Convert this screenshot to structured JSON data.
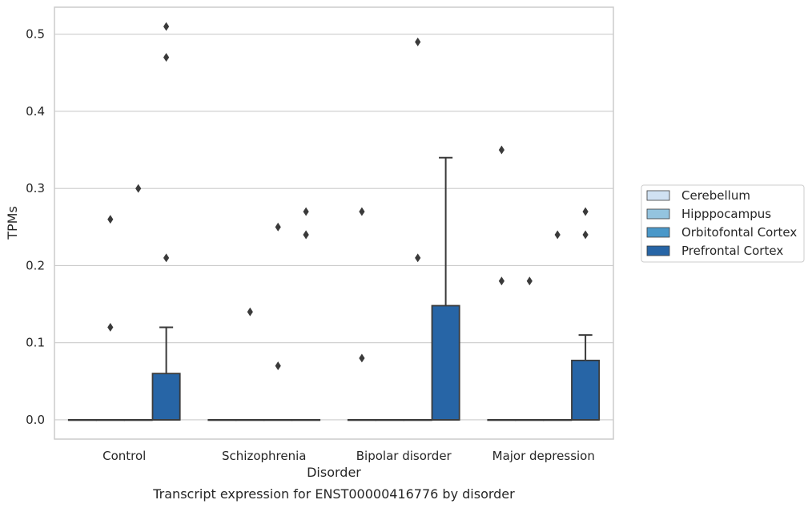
{
  "caption": "Transcript expression for ENST00000416776 by disorder",
  "chart_data": {
    "type": "box",
    "xlabel": "Disorder",
    "ylabel": "TPMs",
    "categories": [
      "Control",
      "Schizophrenia",
      "Bipolar disorder",
      "Major depression"
    ],
    "ylim": [
      -0.025,
      0.535
    ],
    "yticks": [
      0.0,
      0.1,
      0.2,
      0.3,
      0.4,
      0.5
    ],
    "ytick_labels": [
      "0.0",
      "0.1",
      "0.2",
      "0.3",
      "0.4",
      "0.5"
    ],
    "grid": "horizontal",
    "legend_position": "right",
    "series": [
      {
        "name": "Cerebellum",
        "color": "#d0e1f2",
        "boxes": [
          {
            "q1": 0,
            "median": 0,
            "q3": 0,
            "whisker_low": 0,
            "whisker_high": 0,
            "outliers": []
          },
          {
            "q1": 0,
            "median": 0,
            "q3": 0,
            "whisker_low": 0,
            "whisker_high": 0,
            "outliers": []
          },
          {
            "q1": 0,
            "median": 0,
            "q3": 0,
            "whisker_low": 0,
            "whisker_high": 0,
            "outliers": [
              0.08,
              0.27
            ]
          },
          {
            "q1": 0,
            "median": 0,
            "q3": 0,
            "whisker_low": 0,
            "whisker_high": 0,
            "outliers": [
              0.18,
              0.35
            ]
          }
        ]
      },
      {
        "name": "Hipppocampus",
        "color": "#94c4df",
        "boxes": [
          {
            "q1": 0,
            "median": 0,
            "q3": 0,
            "whisker_low": 0,
            "whisker_high": 0,
            "outliers": [
              0.12,
              0.26
            ]
          },
          {
            "q1": 0,
            "median": 0,
            "q3": 0,
            "whisker_low": 0,
            "whisker_high": 0,
            "outliers": [
              0.14
            ]
          },
          {
            "q1": 0,
            "median": 0,
            "q3": 0,
            "whisker_low": 0,
            "whisker_high": 0,
            "outliers": []
          },
          {
            "q1": 0,
            "median": 0,
            "q3": 0,
            "whisker_low": 0,
            "whisker_high": 0,
            "outliers": [
              0.18
            ]
          }
        ]
      },
      {
        "name": "Orbitofontal Cortex",
        "color": "#4a98c9",
        "boxes": [
          {
            "q1": 0,
            "median": 0,
            "q3": 0,
            "whisker_low": 0,
            "whisker_high": 0,
            "outliers": [
              0.3
            ]
          },
          {
            "q1": 0,
            "median": 0,
            "q3": 0,
            "whisker_low": 0,
            "whisker_high": 0,
            "outliers": [
              0.07,
              0.25
            ]
          },
          {
            "q1": 0,
            "median": 0,
            "q3": 0,
            "whisker_low": 0,
            "whisker_high": 0,
            "outliers": [
              0.21,
              0.49
            ]
          },
          {
            "q1": 0,
            "median": 0,
            "q3": 0,
            "whisker_low": 0,
            "whisker_high": 0,
            "outliers": [
              0.24
            ]
          }
        ]
      },
      {
        "name": "Prefrontal Cortex",
        "color": "#2765a6",
        "boxes": [
          {
            "q1": 0,
            "median": 0,
            "q3": 0.06,
            "whisker_low": 0,
            "whisker_high": 0.12,
            "outliers": [
              0.21,
              0.47,
              0.51
            ]
          },
          {
            "q1": 0,
            "median": 0,
            "q3": 0,
            "whisker_low": 0,
            "whisker_high": 0,
            "outliers": [
              0.24,
              0.24,
              0.27
            ]
          },
          {
            "q1": 0,
            "median": 0,
            "q3": 0.148,
            "whisker_low": 0,
            "whisker_high": 0.34,
            "outliers": []
          },
          {
            "q1": 0,
            "median": 0,
            "q3": 0.077,
            "whisker_low": 0,
            "whisker_high": 0.11,
            "outliers": [
              0.24,
              0.27
            ]
          }
        ]
      }
    ]
  }
}
